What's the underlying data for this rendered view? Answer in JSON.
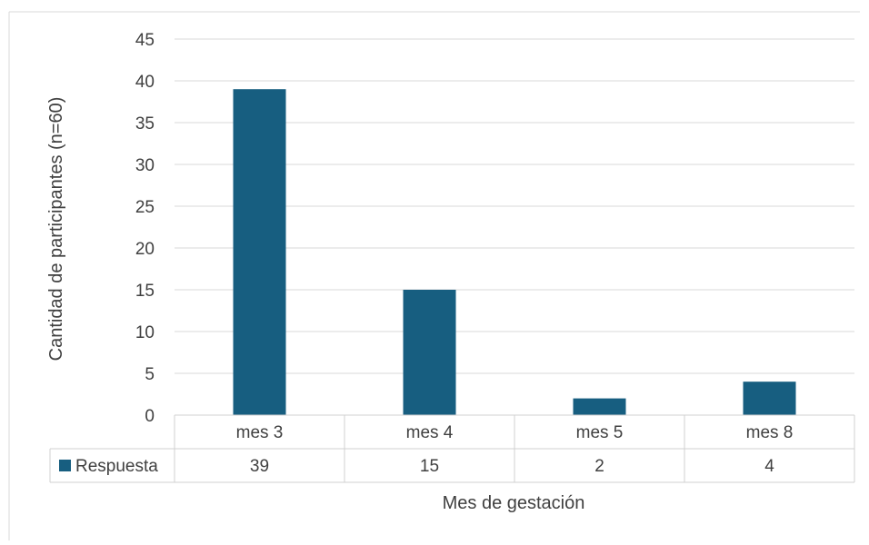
{
  "chart_data": {
    "type": "bar",
    "title": "",
    "xlabel": "Mes de gestación",
    "ylabel": "Cantidad de participantes (n=60)",
    "categories": [
      "mes 3",
      "mes 4",
      "mes 5",
      "mes 8"
    ],
    "series": [
      {
        "name": "Respuesta",
        "values": [
          39,
          15,
          2,
          4
        ],
        "color": "#175E80"
      }
    ],
    "ylim": [
      0,
      45
    ],
    "yticks": [
      0,
      5,
      10,
      15,
      20,
      25,
      30,
      35,
      40,
      45
    ],
    "grid": true,
    "legend": "data-table",
    "colors": {
      "bar": "#175E80",
      "grid": "#d9d9d9",
      "text": "#404040",
      "border": "#d0d0d0"
    }
  }
}
